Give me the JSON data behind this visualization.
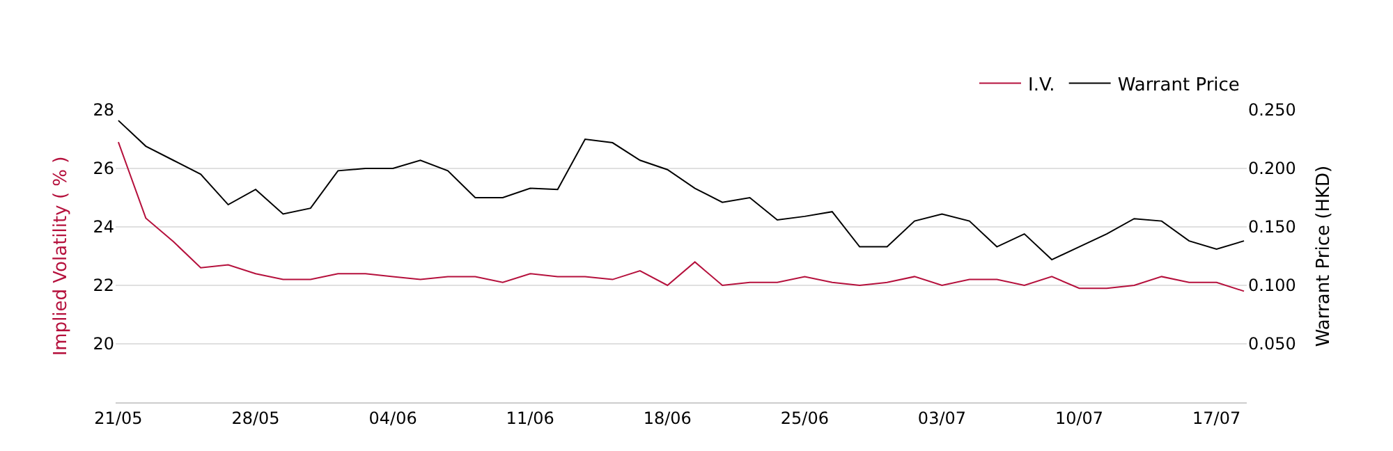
{
  "chart_data": {
    "type": "line",
    "ylabel": "Implied Volatility ( % )",
    "y2label": "Warrant Price (HKD)",
    "categories": [
      "21/05",
      null,
      null,
      null,
      null,
      "28/05",
      null,
      null,
      null,
      null,
      "04/06",
      null,
      null,
      null,
      null,
      "11/06",
      null,
      null,
      null,
      null,
      "18/06",
      null,
      null,
      null,
      null,
      "25/06",
      null,
      null,
      null,
      null,
      "03/07",
      null,
      null,
      null,
      null,
      "10/07",
      null,
      null,
      null,
      null,
      "17/07",
      null
    ],
    "series": [
      {
        "name": "I.V.",
        "color": "#b5103c",
        "values": [
          26.9,
          24.3,
          23.5,
          22.6,
          22.7,
          22.4,
          22.2,
          22.2,
          22.4,
          22.4,
          22.3,
          22.2,
          22.3,
          22.3,
          22.1,
          22.4,
          22.3,
          22.3,
          22.2,
          22.5,
          22.0,
          22.8,
          22.0,
          22.1,
          22.1,
          22.3,
          22.1,
          22.0,
          22.1,
          22.3,
          22.0,
          22.2,
          22.2,
          22.0,
          22.3,
          21.9,
          21.9,
          22.0,
          22.3,
          22.1,
          22.1,
          21.8
        ]
      },
      {
        "name": "Warrant Price",
        "color": "#000000",
        "axis": "y2",
        "values": [
          0.241,
          0.219,
          0.207,
          0.195,
          0.169,
          0.182,
          0.161,
          0.166,
          0.198,
          0.2,
          0.2,
          0.207,
          0.198,
          0.175,
          0.175,
          0.183,
          0.182,
          0.225,
          0.222,
          0.207,
          0.199,
          0.183,
          0.171,
          0.175,
          0.156,
          0.159,
          0.163,
          0.133,
          0.133,
          0.155,
          0.161,
          0.155,
          0.133,
          0.144,
          0.122,
          0.133,
          0.144,
          0.157,
          0.155,
          0.138,
          0.131,
          0.138
        ]
      }
    ],
    "ylim": [
      18,
      28
    ],
    "yticks": [
      20,
      22,
      24,
      26,
      28
    ],
    "y2lim": [
      0,
      0.25
    ],
    "y2ticks": [
      {
        "value": 0.05,
        "label": "0.050"
      },
      {
        "value": 0.1,
        "label": "0.100"
      },
      {
        "value": 0.15,
        "label": "0.150"
      },
      {
        "value": 0.2,
        "label": "0.200"
      },
      {
        "value": 0.25,
        "label": "0.250"
      }
    ],
    "grid": "y",
    "legend": "top right",
    "marker": "none",
    "line_style": "solid"
  }
}
